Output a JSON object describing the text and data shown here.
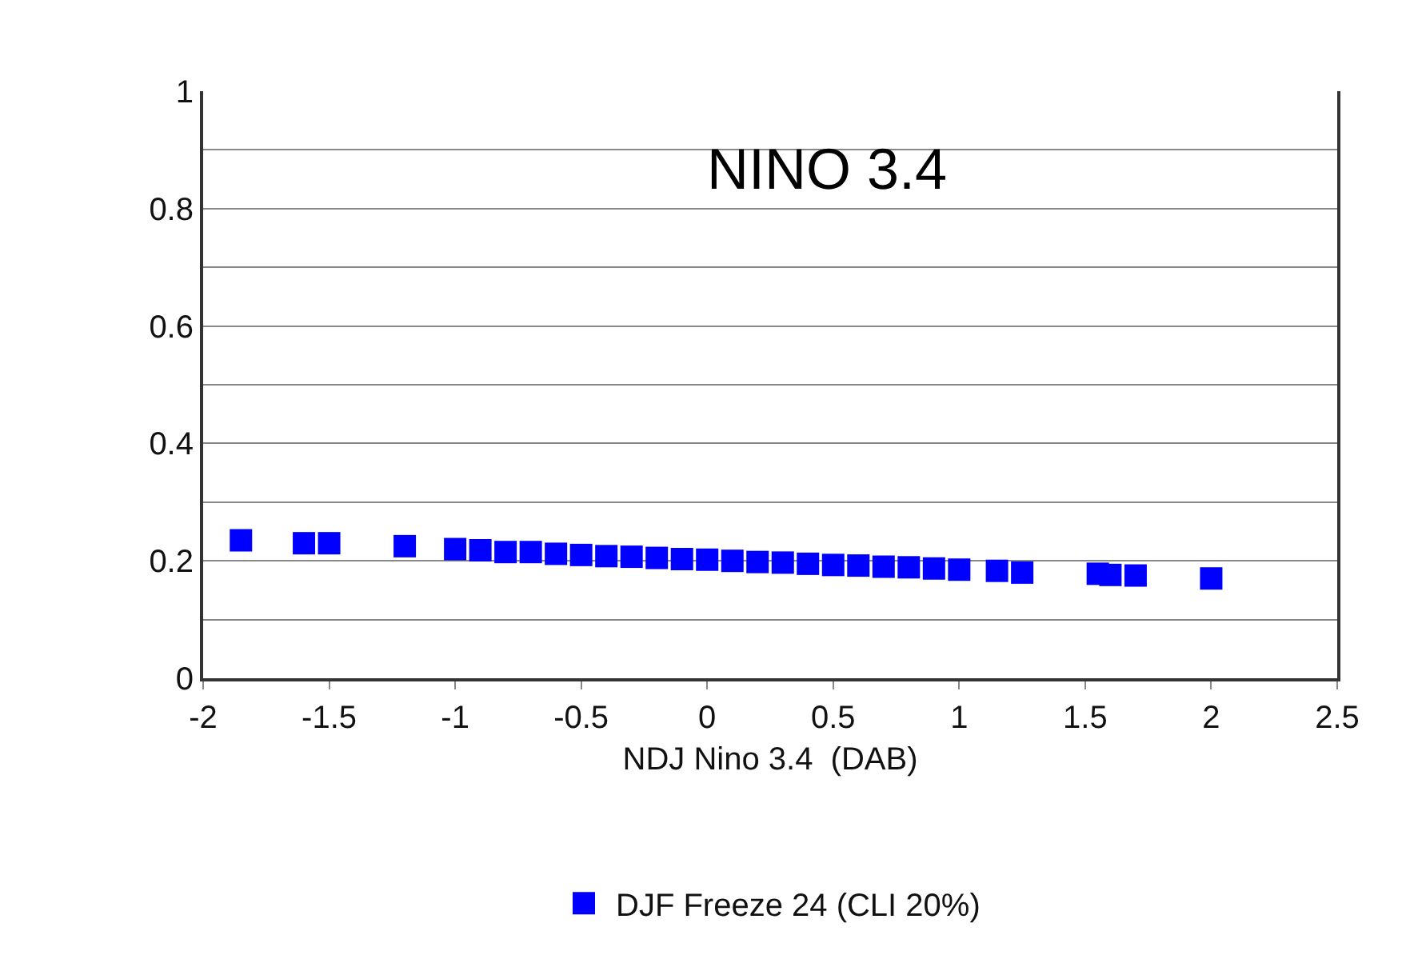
{
  "chart_data": {
    "type": "scatter",
    "xlabel": "NDJ Nino 3.4  (DAB)",
    "annotations": [
      "NINO 3.4"
    ],
    "x": [
      -1.85,
      -1.6,
      -1.5,
      -1.2,
      -1.0,
      -0.9,
      -0.8,
      -0.7,
      -0.6,
      -0.5,
      -0.4,
      -0.3,
      -0.2,
      -0.1,
      0.0,
      0.1,
      0.2,
      0.3,
      0.4,
      0.5,
      0.6,
      0.7,
      0.8,
      0.9,
      1.0,
      1.15,
      1.25,
      1.55,
      1.6,
      1.7,
      2.0
    ],
    "series": [
      {
        "name": "DJF Freeze 24 (CLI 20%)",
        "color": "#0000ff",
        "values": [
          0.235,
          0.23,
          0.23,
          0.225,
          0.22,
          0.218,
          0.215,
          0.215,
          0.212,
          0.21,
          0.208,
          0.207,
          0.205,
          0.203,
          0.202,
          0.2,
          0.198,
          0.197,
          0.195,
          0.193,
          0.192,
          0.19,
          0.189,
          0.187,
          0.185,
          0.183,
          0.18,
          0.178,
          0.176,
          0.175,
          0.17
        ]
      }
    ],
    "xlim": [
      -2,
      2.5
    ],
    "xticks": [
      -2,
      -1.5,
      -1,
      -0.5,
      0,
      0.5,
      1,
      1.5,
      2,
      2.5
    ],
    "ylim": [
      0,
      1
    ],
    "yticks": [
      0,
      {
        "value": 0.1,
        "label": null
      },
      0.2,
      {
        "value": 0.3,
        "label": null
      },
      0.4,
      {
        "value": 0.5,
        "label": null
      },
      0.6,
      {
        "value": 0.7,
        "label": null
      },
      0.8,
      {
        "value": 0.9,
        "label": null
      },
      1
    ],
    "grid": "y",
    "legend": "bottom",
    "marker": "square"
  }
}
